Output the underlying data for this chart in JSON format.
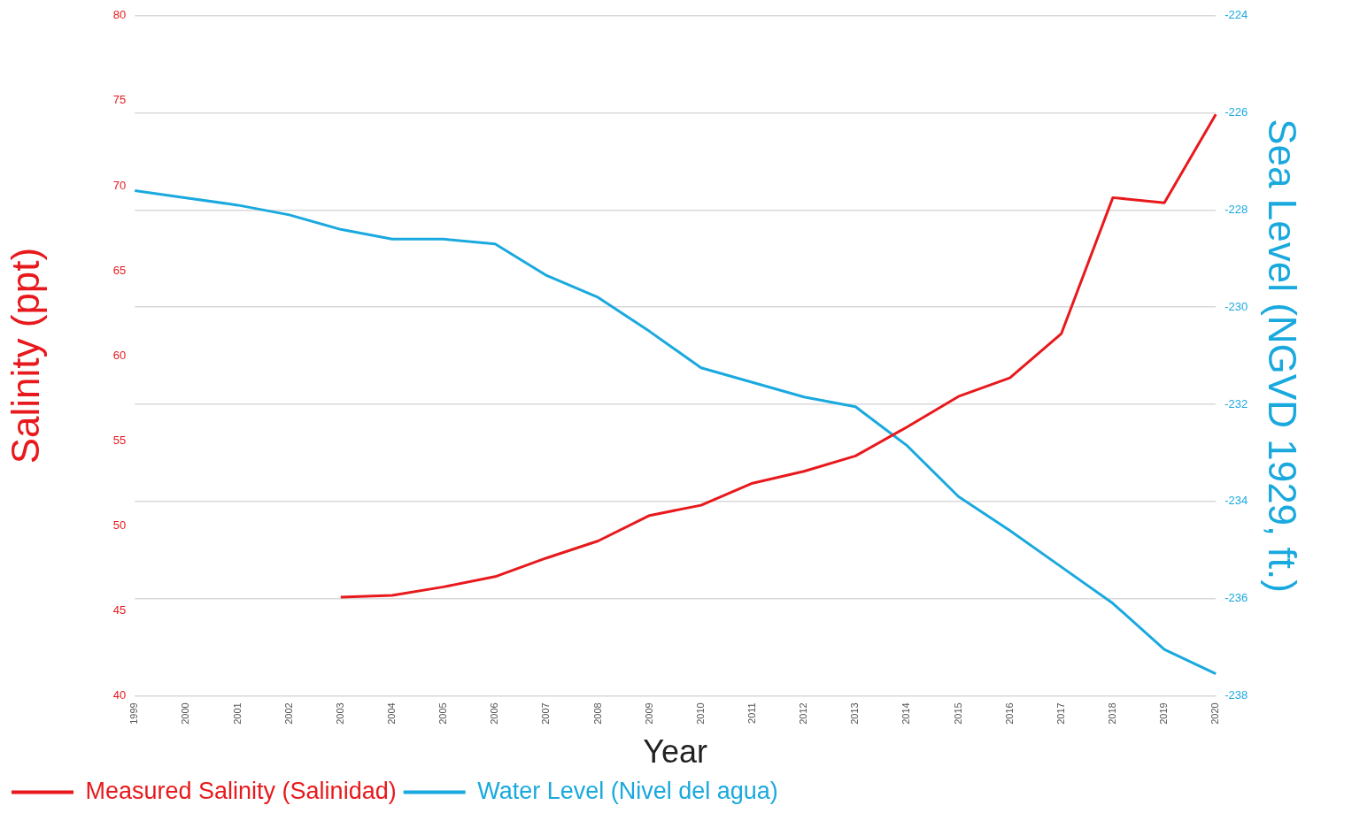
{
  "chart_data": {
    "type": "line",
    "xlabel": "Year",
    "ylabel": "Salinity (ppt)",
    "y2label": "Sea Level (NGVD 1929, ft.)",
    "categories": [
      "1999",
      "2000",
      "2001",
      "2002",
      "2003",
      "2004",
      "2005",
      "2006",
      "2007",
      "2008",
      "2009",
      "2010",
      "2011",
      "2012",
      "2013",
      "2014",
      "2015",
      "2016",
      "2017",
      "2018",
      "2019",
      "2020"
    ],
    "series": [
      {
        "name": "Measured Salinity (Salinidad)",
        "color": "#e8191c",
        "values": [
          null,
          null,
          null,
          null,
          45.8,
          45.9,
          46.4,
          47.0,
          48.1,
          49.1,
          50.6,
          51.2,
          52.5,
          53.2,
          54.1,
          55.8,
          57.6,
          58.7,
          61.3,
          69.3,
          69.0,
          74.2
        ]
      },
      {
        "name": "Water Level (Nivel del agua)",
        "color": "#1aa9de",
        "axis": "y2",
        "values": [
          -227.6,
          -227.75,
          -227.9,
          -228.1,
          -228.4,
          -228.6,
          -228.6,
          -228.7,
          -229.35,
          -229.8,
          -230.5,
          -231.25,
          -231.55,
          -231.85,
          -232.05,
          -232.85,
          -233.9,
          -234.6,
          -235.35,
          -236.1,
          -237.05,
          -237.55
        ]
      }
    ],
    "ylim": [
      40,
      80
    ],
    "yticks": [
      40,
      45,
      50,
      55,
      60,
      65,
      70,
      75,
      80
    ],
    "y2lim": [
      -238,
      -224
    ],
    "y2ticks": [
      -238,
      -236,
      -234,
      -232,
      -230,
      -228,
      -226,
      -224
    ],
    "grid": "y2",
    "legend": "bottom left",
    "marker": "none",
    "line_style": "solid"
  }
}
